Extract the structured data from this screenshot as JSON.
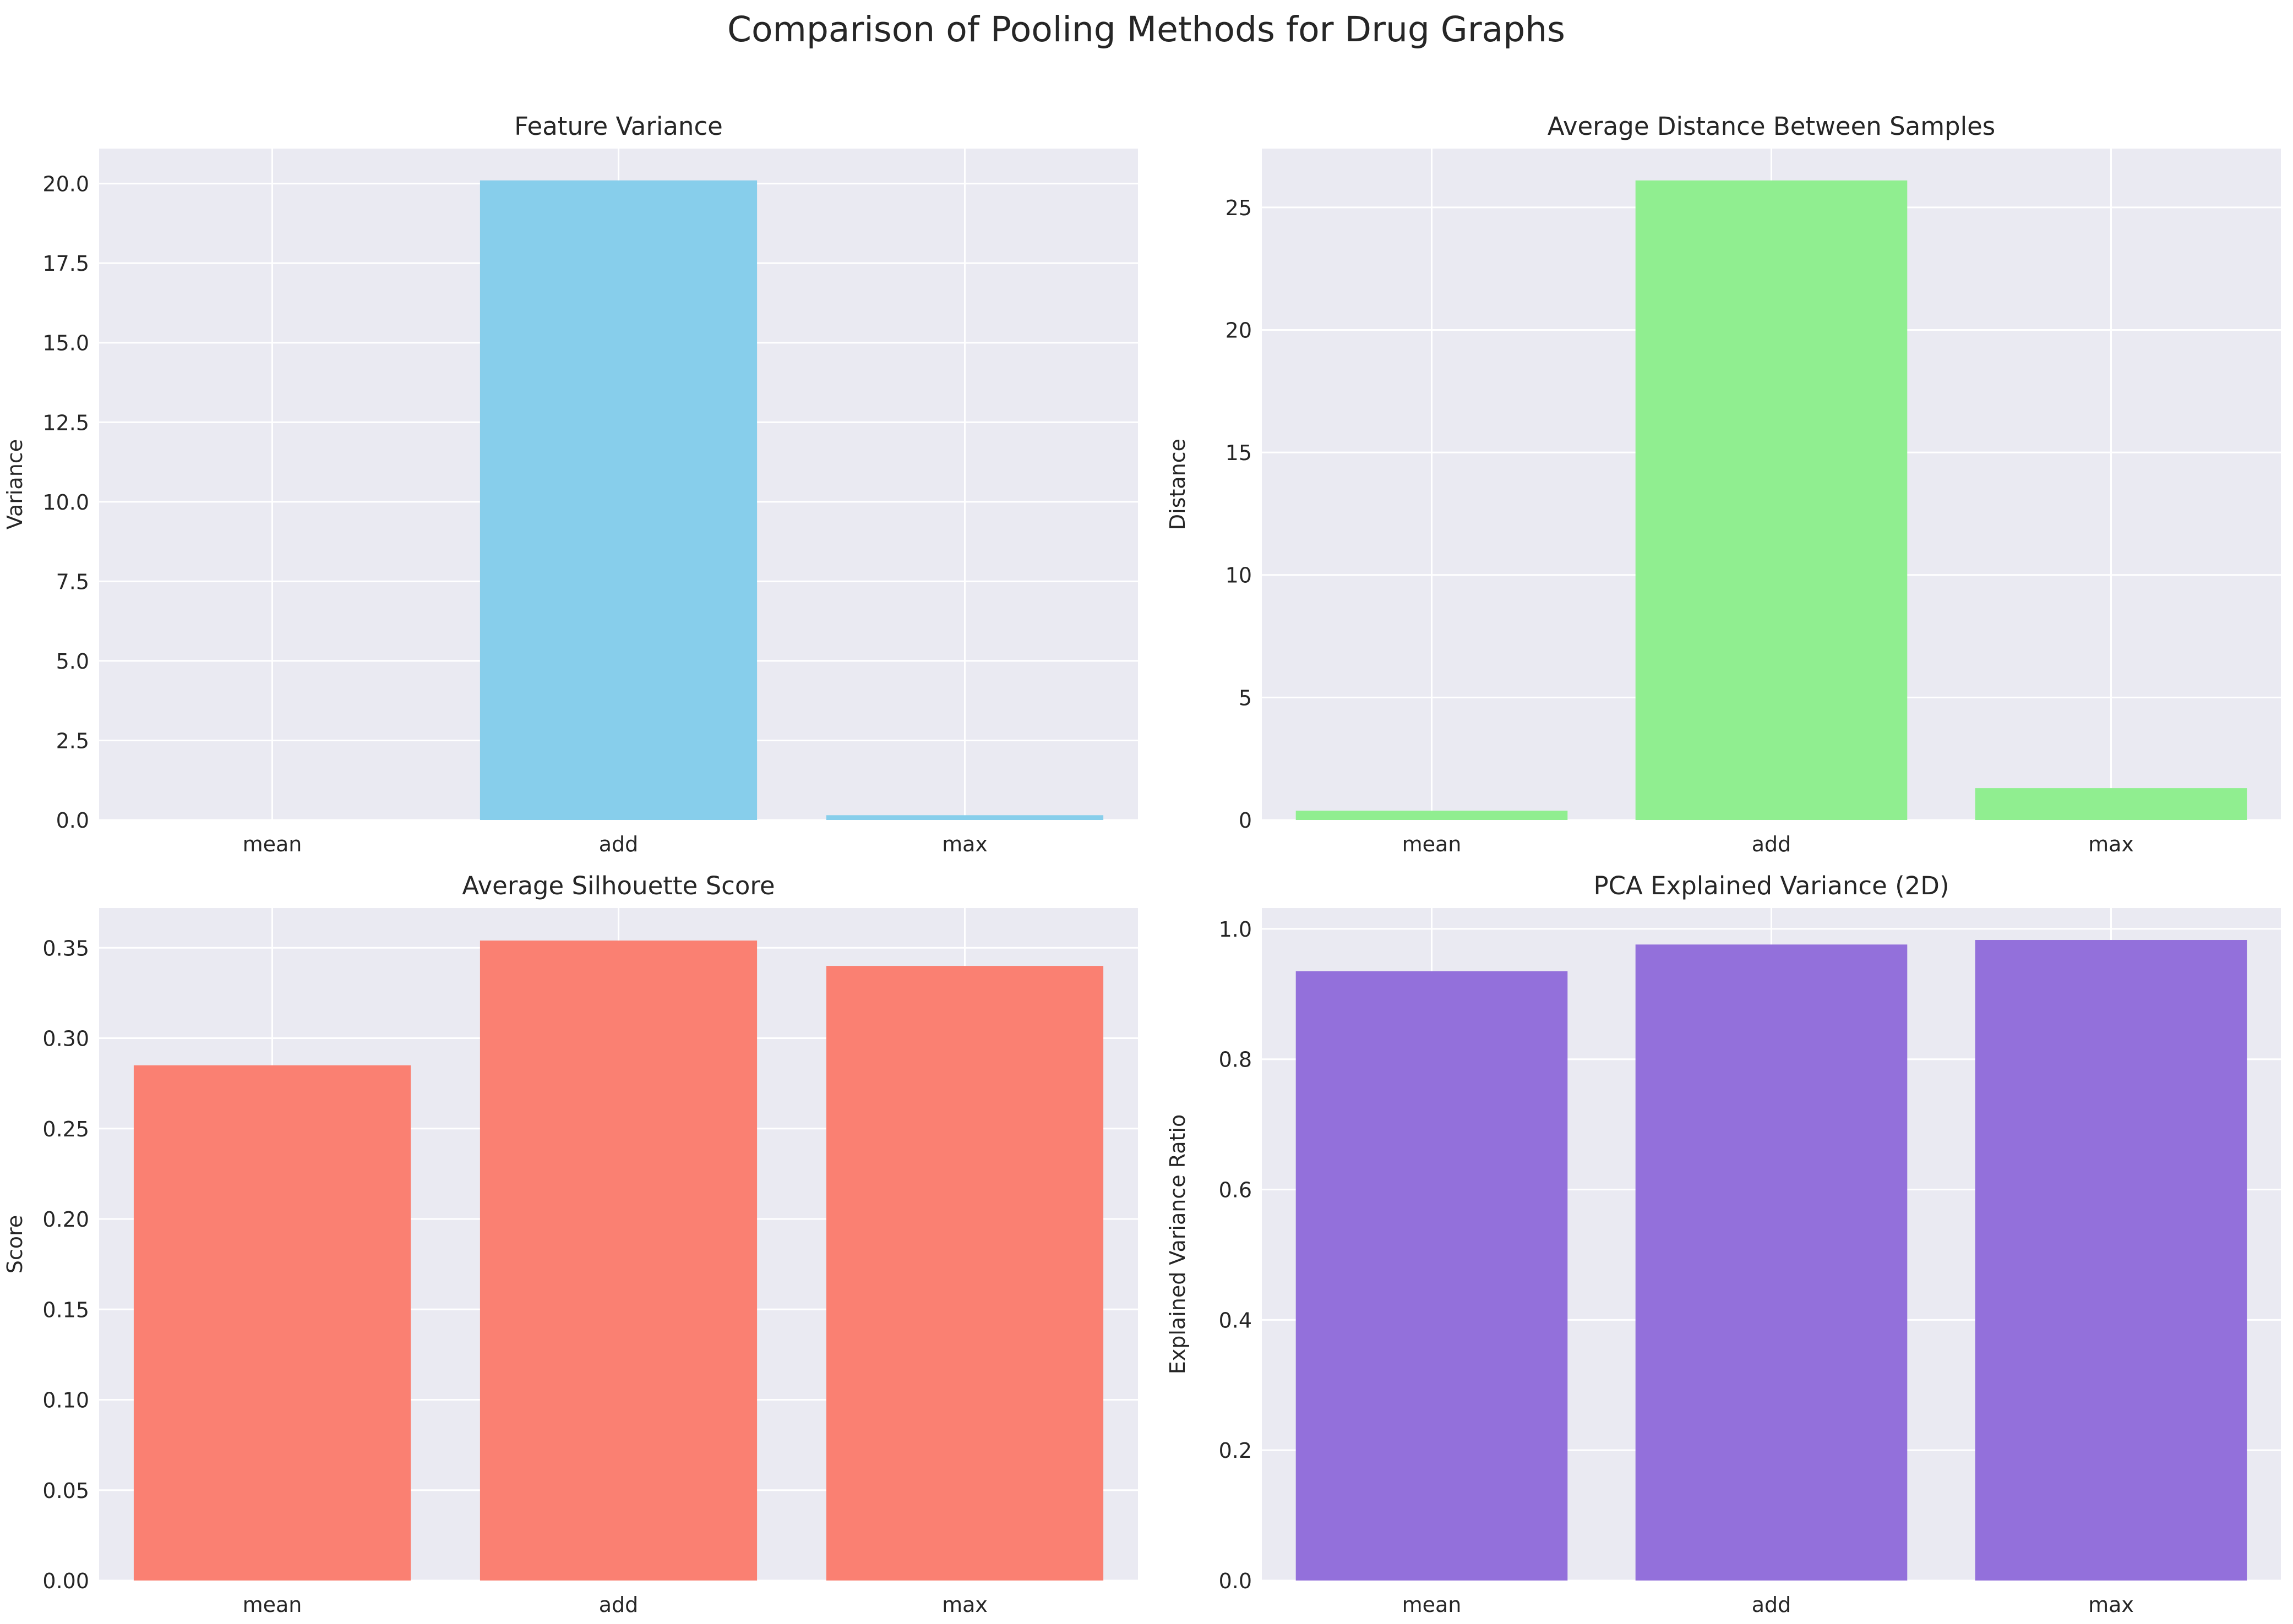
{
  "figure": {
    "title": "Comparison of Pooling Methods for Drug Graphs"
  },
  "chart_data": [
    {
      "type": "bar",
      "title": "Feature Variance",
      "xlabel": "",
      "ylabel": "Variance",
      "categories": [
        "mean",
        "add",
        "max"
      ],
      "values": [
        0.0,
        20.1,
        0.15
      ],
      "ylim": [
        0,
        21.1
      ],
      "yticks": [
        0.0,
        2.5,
        5.0,
        7.5,
        10.0,
        12.5,
        15.0,
        17.5,
        20.0
      ],
      "ytick_labels": [
        "0.0",
        "2.5",
        "5.0",
        "7.5",
        "10.0",
        "12.5",
        "15.0",
        "17.5",
        "20.0"
      ],
      "color": "#87ceeb",
      "grid": true,
      "legend": false
    },
    {
      "type": "bar",
      "title": "Average Distance Between Samples",
      "xlabel": "",
      "ylabel": "Distance",
      "categories": [
        "mean",
        "add",
        "max"
      ],
      "values": [
        0.38,
        26.1,
        1.3
      ],
      "ylim": [
        0,
        27.4
      ],
      "yticks": [
        0,
        5,
        10,
        15,
        20,
        25
      ],
      "ytick_labels": [
        "0",
        "5",
        "10",
        "15",
        "20",
        "25"
      ],
      "color": "#90ee90",
      "grid": true,
      "legend": false
    },
    {
      "type": "bar",
      "title": "Average Silhouette Score",
      "xlabel": "",
      "ylabel": "Score",
      "categories": [
        "mean",
        "add",
        "max"
      ],
      "values": [
        0.285,
        0.354,
        0.34
      ],
      "ylim": [
        0,
        0.372
      ],
      "yticks": [
        0.0,
        0.05,
        0.1,
        0.15,
        0.2,
        0.25,
        0.3,
        0.35
      ],
      "ytick_labels": [
        "0.00",
        "0.05",
        "0.10",
        "0.15",
        "0.20",
        "0.25",
        "0.30",
        "0.35"
      ],
      "color": "#fa8072",
      "grid": true,
      "legend": false
    },
    {
      "type": "bar",
      "title": "PCA Explained Variance (2D)",
      "xlabel": "",
      "ylabel": "Explained Variance Ratio",
      "categories": [
        "mean",
        "add",
        "max"
      ],
      "values": [
        0.935,
        0.976,
        0.983
      ],
      "ylim": [
        0,
        1.032
      ],
      "yticks": [
        0.0,
        0.2,
        0.4,
        0.6,
        0.8,
        1.0
      ],
      "ytick_labels": [
        "0.0",
        "0.2",
        "0.4",
        "0.6",
        "0.8",
        "1.0"
      ],
      "color": "#9370db",
      "grid": true,
      "legend": false
    }
  ],
  "style": {
    "axes_background": "#eaeaf2",
    "grid_color": "#ffffff",
    "text_color": "#262626"
  }
}
